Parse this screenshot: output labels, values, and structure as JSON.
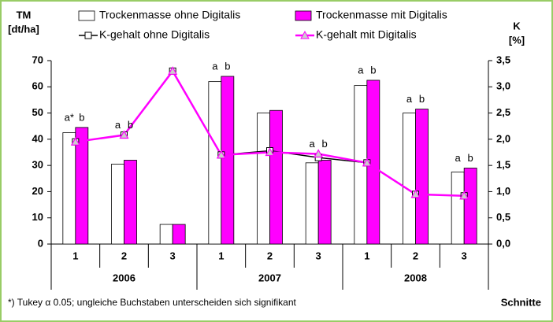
{
  "chart_data": {
    "type": "bar_line",
    "y_label": [
      "TM",
      "[dt/ha]"
    ],
    "y2_label": [
      "K",
      "[%]"
    ],
    "x_label": "Schnitte",
    "footnote": "*) Tukey α 0.05; ungleiche Buchstaben unterscheiden sich signifikant",
    "categories": [
      "1",
      "2",
      "3",
      "1",
      "2",
      "3",
      "1",
      "2",
      "3"
    ],
    "groups": [
      "2006",
      "2007",
      "2008"
    ],
    "ylim": [
      0,
      70
    ],
    "yticks": [
      0,
      10,
      20,
      30,
      40,
      50,
      60,
      70
    ],
    "y2lim": [
      0,
      3.5
    ],
    "y2ticks": [
      {
        "value": 0,
        "label": "0,0"
      },
      {
        "value": 0.5,
        "label": "0,5"
      },
      {
        "value": 1,
        "label": "1,0"
      },
      {
        "value": 1.5,
        "label": "1,5"
      },
      {
        "value": 2,
        "label": "2,0"
      },
      {
        "value": 2.5,
        "label": "2,5"
      },
      {
        "value": 3,
        "label": "3,0"
      },
      {
        "value": 3.5,
        "label": "3,5"
      }
    ],
    "series": [
      {
        "name": "Trockenmasse ohne Digitalis",
        "kind": "bar",
        "color": "#ffffff",
        "values": [
          42.5,
          30.5,
          7.5,
          62,
          50,
          31,
          60.5,
          50,
          27.5
        ],
        "letters": [
          "a*",
          "a",
          null,
          "a",
          null,
          "a",
          "a",
          "a",
          "a"
        ]
      },
      {
        "name": "Trockenmasse mit Digitalis",
        "kind": "bar",
        "color": "#ff00ff",
        "values": [
          44.5,
          32,
          7.5,
          64,
          51,
          32,
          62.5,
          51.5,
          29
        ],
        "letters": [
          "b",
          "b",
          null,
          "b",
          null,
          "b",
          "b",
          "b",
          "b"
        ]
      },
      {
        "name": "K-gehalt ohne Digitalis",
        "kind": "line",
        "axis": "y2",
        "color": "#000000",
        "marker": "square",
        "values": [
          1.95,
          2.08,
          3.3,
          1.7,
          1.78,
          1.65,
          1.55,
          0.95,
          0.92
        ]
      },
      {
        "name": "K-gehalt mit Digitalis",
        "kind": "line",
        "axis": "y2",
        "color": "#ff00ff",
        "marker": "triangle",
        "values": [
          1.95,
          2.08,
          3.3,
          1.7,
          1.75,
          1.72,
          1.55,
          0.95,
          0.92
        ]
      }
    ]
  }
}
